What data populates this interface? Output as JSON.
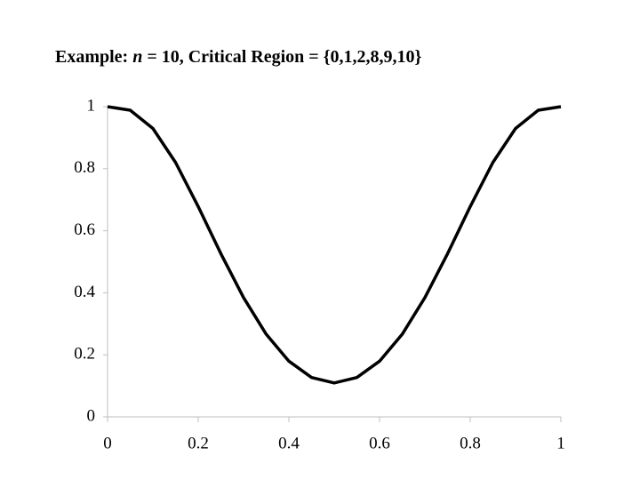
{
  "chart_data": {
    "type": "line",
    "title": [
      "Example:",
      "n",
      "= 10, Critical Region = {0,1,2,8,9,10}"
    ],
    "x": [
      0,
      0.05,
      0.1,
      0.15,
      0.2,
      0.25,
      0.3,
      0.35,
      0.4,
      0.45,
      0.5,
      0.55,
      0.6,
      0.65,
      0.7,
      0.75,
      0.8,
      0.85,
      0.9,
      0.95,
      1
    ],
    "series": [
      {
        "color": "#000000",
        "values": [
          1,
          0.9885,
          0.9298,
          0.8202,
          0.6779,
          0.526,
          0.3844,
          0.2664,
          0.1796,
          0.1269,
          0.1094,
          0.1269,
          0.1796,
          0.2664,
          0.3844,
          0.526,
          0.6779,
          0.8202,
          0.9298,
          0.9885,
          1
        ]
      }
    ],
    "xlim": [
      0,
      1
    ],
    "xticks": [
      0,
      0.2,
      0.4,
      0.6,
      0.8,
      1
    ],
    "ylim": [
      0,
      1
    ],
    "yticks": [
      0,
      0.2,
      0.4,
      0.6,
      0.8,
      1
    ]
  }
}
